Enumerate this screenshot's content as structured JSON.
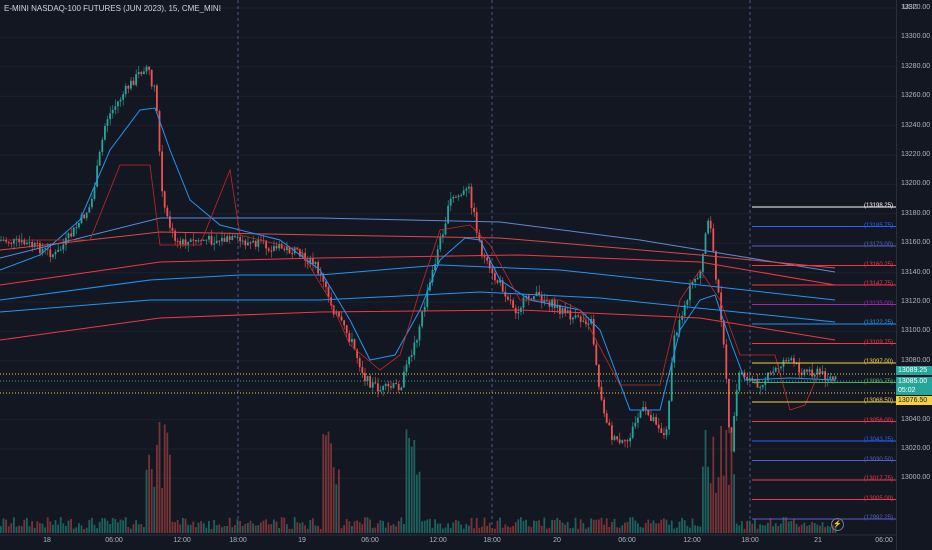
{
  "title": "E-MINI NASDAQ-100 FUTURES (JUN 2023), 15, CME_MINI",
  "currency": "USD",
  "y_ticks": [
    "13320.00",
    "13300.00",
    "13280.00",
    "13260.00",
    "13240.00",
    "13220.00",
    "13200.00",
    "13180.00",
    "13160.00",
    "13140.00",
    "13120.00",
    "13100.00",
    "13080.00",
    "13060.00",
    "13040.00",
    "13020.00",
    "13000.00"
  ],
  "x_ticks": [
    "18",
    "06:00",
    "12:00",
    "18:00",
    "19",
    "06:00",
    "12:00",
    "18:00",
    "20",
    "06:00",
    "12:00",
    "18:00",
    "21",
    "06:00"
  ],
  "price_tags": {
    "current": "13089.25",
    "last": "13085.00",
    "countdown": "05:02",
    "lower": "13076.50"
  },
  "levels": [
    {
      "label": "(13198.25)",
      "color": "#ffffff"
    },
    {
      "label": "(13185.75)",
      "color": "#2962ff"
    },
    {
      "label": "(13173.00)",
      "color": "#5b5fc7"
    },
    {
      "label": "(13160.25)",
      "color": "#f23645"
    },
    {
      "label": "(13147.75)",
      "color": "#f23645"
    },
    {
      "label": "(13135.00)",
      "color": "#9c27b0"
    },
    {
      "label": "(13122.25)",
      "color": "#2196f3"
    },
    {
      "label": "(13109.75)",
      "color": "#f23645"
    },
    {
      "label": "(13097.00)",
      "color": "#f5d142"
    },
    {
      "label": "(13081.75)",
      "color": "#4caf50"
    },
    {
      "label": "(13068.50)",
      "color": "#f5d142"
    },
    {
      "label": "(13056.00)",
      "color": "#f23645"
    },
    {
      "label": "(13043.25)",
      "color": "#2962ff"
    },
    {
      "label": "(13030.50)",
      "color": "#5b5fc7"
    },
    {
      "label": "(13017.75)",
      "color": "#f23645"
    },
    {
      "label": "(13005.00)",
      "color": "#f23645"
    },
    {
      "label": "(12992.25)",
      "color": "#5b5fc7"
    }
  ],
  "colors": {
    "up": "#26a69a",
    "down": "#ef5350",
    "background": "#131722",
    "grid": "#1e222d"
  },
  "icons": {
    "replay": "lightning-icon"
  }
}
